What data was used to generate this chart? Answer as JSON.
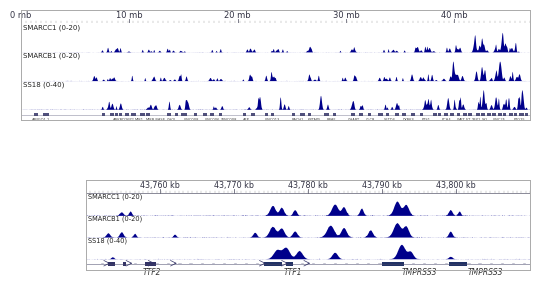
{
  "bg_color": "#ffffff",
  "bar_color": "#00008B",
  "header_bg": "#c8c8d8",
  "track_bg": "#ffffff",
  "gene_track_bg": "#d0d0e0",
  "ruler_bg": "#d8d8e8",
  "panel1": {
    "xmin": 0,
    "xmax": 47,
    "xticks": [
      0,
      10,
      20,
      30,
      40
    ],
    "xtick_labels": [
      "0 mb",
      "10 mb",
      "20 mb",
      "30 mb",
      "40 mb"
    ],
    "tracks": [
      {
        "label": "SMARCC1 (0-20)"
      },
      {
        "label": "SMARCB1 (0-20)"
      },
      {
        "label": "SS18 (0-40)"
      }
    ]
  },
  "panel2": {
    "xmin": 43750,
    "xmax": 43810,
    "xticks": [
      43760,
      43770,
      43780,
      43790,
      43800
    ],
    "xtick_labels": [
      "43,760 kb",
      "43,770 kb",
      "43,780 kb",
      "43,790 kb",
      "43,800 kb"
    ],
    "tracks": [
      {
        "label": "SMARCC1 (0-20)"
      },
      {
        "label": "SMARCB1 (0-20)"
      },
      {
        "label": "SS18 (0-40)"
      }
    ],
    "gene_labels": [
      {
        "name": "TTF2",
        "x": 43759
      },
      {
        "name": "TTF1",
        "x": 43778
      },
      {
        "name": "TMPRSS3",
        "x": 43795
      },
      {
        "name": "TMPRSS3",
        "x": 43804
      }
    ]
  }
}
